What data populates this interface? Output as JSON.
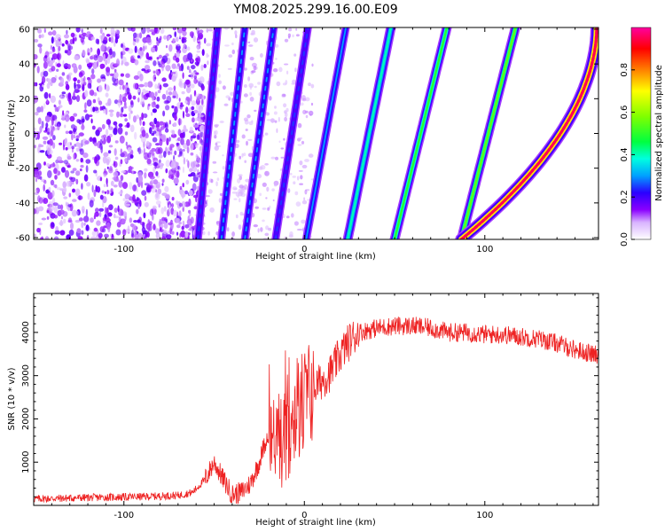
{
  "title": "YM08.2025.299.16.00.E09",
  "chart_data": [
    {
      "type": "heatmap",
      "xlabel": "Height of straight line (km)",
      "ylabel": "Frequency (Hz)",
      "xlim": [
        -150,
        163
      ],
      "ylim": [
        -61,
        61
      ],
      "xticks": [
        -100,
        0,
        100
      ],
      "yticks": [
        -60,
        -40,
        -20,
        0,
        20,
        40,
        60
      ],
      "colorbar": {
        "label": "Normalized spectral amplitude",
        "range": [
          0,
          1
        ],
        "ticks": [
          "0.0",
          "0.2",
          "0.4",
          "0.6",
          "0.8"
        ]
      },
      "ridges": [
        {
          "x_at_fmin": -59,
          "x_at_fmax": -48,
          "amplitude": 0.25
        },
        {
          "x_at_fmin": -46,
          "x_at_fmax": -33,
          "amplitude": 0.3
        },
        {
          "x_at_fmin": -33,
          "x_at_fmax": -17,
          "amplitude": 0.3
        },
        {
          "x_at_fmin": -16,
          "x_at_fmax": 2,
          "amplitude": 0.25
        },
        {
          "x_at_fmin": 1,
          "x_at_fmax": 23,
          "amplitude": 0.3
        },
        {
          "x_at_fmin": 24,
          "x_at_fmax": 48,
          "amplitude": 0.4
        },
        {
          "x_at_fmin": 50,
          "x_at_fmax": 79,
          "amplitude": 0.5
        },
        {
          "x_at_fmin": 87,
          "x_at_fmax": 117,
          "amplitude": 0.55
        },
        {
          "x_at_fmin": 87,
          "x_at_fmax": 162,
          "amplitude": 0.95
        }
      ],
      "noise_region_x": [
        -150,
        -55
      ]
    },
    {
      "type": "line",
      "xlabel": "Height of straight line (km)",
      "ylabel": "SNR (10 * v/v)",
      "xlim": [
        -150,
        163
      ],
      "ylim": [
        0,
        4900
      ],
      "xticks": [
        -100,
        0,
        100
      ],
      "yticks": [
        1000,
        2000,
        3000,
        4000
      ],
      "series": [
        {
          "name": "SNR",
          "color": "#ee2222",
          "x": [
            -150,
            -120,
            -90,
            -70,
            -62,
            -55,
            -50,
            -45,
            -40,
            -35,
            -30,
            -25,
            -20,
            -15,
            -10,
            -5,
            0,
            5,
            10,
            15,
            20,
            25,
            30,
            40,
            50,
            60,
            70,
            80,
            90,
            100,
            110,
            120,
            130,
            140,
            150,
            160,
            163
          ],
          "y": [
            150,
            180,
            200,
            230,
            300,
            600,
            1000,
            600,
            250,
            300,
            500,
            1000,
            1700,
            1500,
            1800,
            2200,
            2400,
            2700,
            2900,
            3100,
            3500,
            3800,
            4000,
            4100,
            4150,
            4150,
            4100,
            4000,
            4000,
            3950,
            3950,
            3900,
            3850,
            3750,
            3600,
            3500,
            3450
          ]
        }
      ]
    }
  ]
}
